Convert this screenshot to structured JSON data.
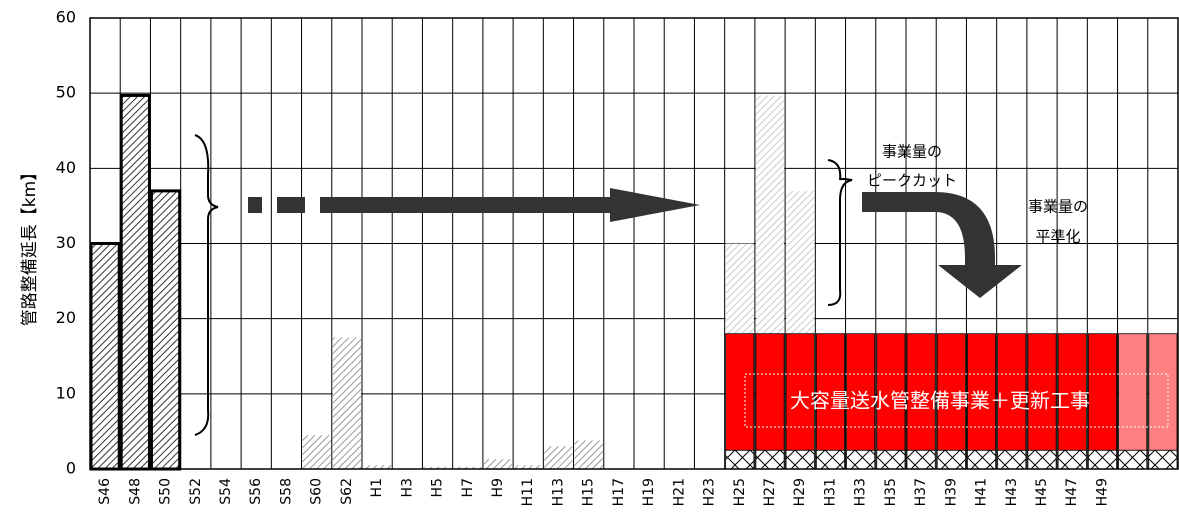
{
  "chart_data": {
    "type": "bar",
    "y_label": "管路整備延長【km】",
    "categories": [
      "S46",
      "S48",
      "S50",
      "S52",
      "S54",
      "S56",
      "S58",
      "S60",
      "S62",
      "H1",
      "H3",
      "H5",
      "H7",
      "H9",
      "H11",
      "H13",
      "H15",
      "H17",
      "H19",
      "H21",
      "H23",
      "H25",
      "H27",
      "H29",
      "H31",
      "H33",
      "H35",
      "H37",
      "H39",
      "H41",
      "H43",
      "H45",
      "H47",
      "H49",
      null,
      null
    ],
    "series": [
      {
        "color": "#000000",
        "pattern": "hatch",
        "stacked": false,
        "values": [
          30,
          49.7,
          37,
          null,
          null,
          null,
          null,
          null,
          null,
          null,
          null,
          null,
          null,
          null,
          null,
          null,
          null,
          null,
          null,
          null,
          null,
          null,
          null,
          null,
          null,
          null,
          null,
          null,
          null,
          null,
          null,
          null,
          null,
          null,
          null,
          null
        ]
      },
      {
        "color": "#666666",
        "pattern": "hatch-light",
        "stacked": false,
        "values": [
          null,
          null,
          null,
          null,
          null,
          null,
          null,
          4.5,
          17.5,
          0.5,
          0,
          0.3,
          0.3,
          1.3,
          0.5,
          3,
          3.8,
          null,
          null,
          null,
          null,
          null,
          null,
          null,
          null,
          null,
          null,
          null,
          null,
          null,
          null,
          null,
          null,
          null,
          null,
          null
        ]
      },
      {
        "color": "#aaaaaa",
        "pattern": "hatch-faint",
        "stacked": false,
        "values": [
          null,
          null,
          null,
          null,
          null,
          null,
          null,
          null,
          null,
          null,
          null,
          null,
          null,
          null,
          null,
          null,
          null,
          null,
          null,
          null,
          null,
          30,
          49.7,
          37,
          null,
          null,
          null,
          null,
          null,
          null,
          null,
          null,
          null,
          null,
          null,
          null
        ]
      },
      {
        "color": "#000000",
        "pattern": "crosshatch",
        "stacked": true,
        "values": [
          null,
          null,
          null,
          null,
          null,
          null,
          null,
          null,
          null,
          null,
          null,
          null,
          null,
          null,
          null,
          null,
          null,
          null,
          null,
          null,
          null,
          2.5,
          2.5,
          2.5,
          2.5,
          2.5,
          2.5,
          2.5,
          2.5,
          2.5,
          2.5,
          2.5,
          2.5,
          2.5,
          2.5,
          2.5
        ]
      },
      {
        "color": "#ff0000",
        "pattern": "solid",
        "stacked": true,
        "values": [
          null,
          null,
          null,
          null,
          null,
          null,
          null,
          null,
          null,
          null,
          null,
          null,
          null,
          null,
          null,
          null,
          null,
          null,
          null,
          null,
          null,
          15.5,
          15.5,
          15.5,
          15.5,
          15.5,
          15.5,
          15.5,
          15.5,
          15.5,
          15.5,
          15.5,
          15.5,
          15.5,
          null,
          null
        ]
      },
      {
        "color": "#ff8080",
        "pattern": "solid",
        "stacked": true,
        "values": [
          null,
          null,
          null,
          null,
          null,
          null,
          null,
          null,
          null,
          null,
          null,
          null,
          null,
          null,
          null,
          null,
          null,
          null,
          null,
          null,
          null,
          null,
          null,
          null,
          null,
          null,
          null,
          null,
          null,
          null,
          null,
          null,
          null,
          null,
          15.5,
          15.5
        ]
      }
    ],
    "ylim": [
      0,
      60
    ],
    "yticks": [
      0,
      10,
      20,
      30,
      40,
      50,
      60
    ],
    "grid": true,
    "annotations": [
      "事業量の",
      "ピークカット",
      "事業量の",
      "平準化",
      "大容量送水管整備事業＋更新工事"
    ]
  }
}
